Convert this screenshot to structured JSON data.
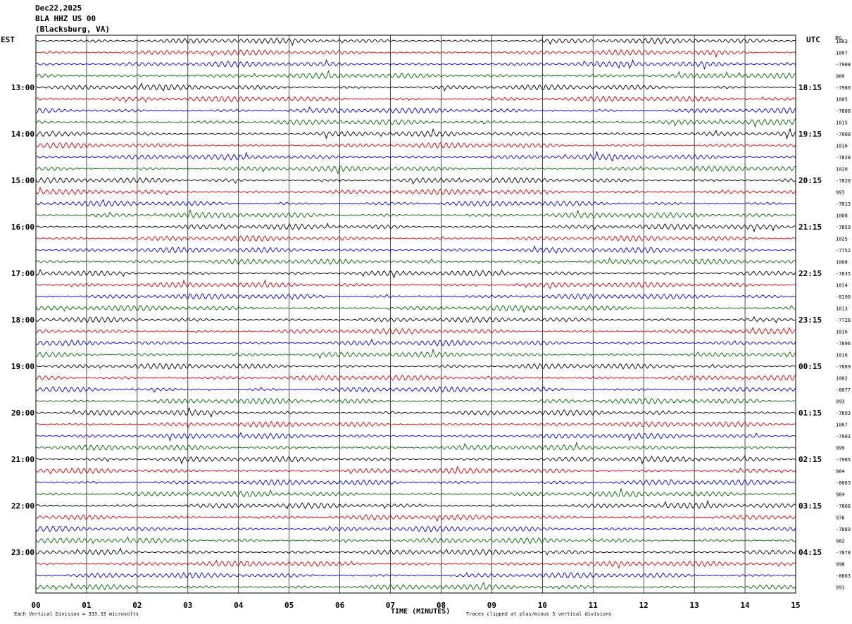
{
  "header": {
    "date": "Dec22,2025",
    "station": "BLA HHZ US 00",
    "location": "(Blacksburg, VA)"
  },
  "left_axis_title": "EST",
  "right_axis_title": "UTC",
  "pg_label": "PG",
  "footer": {
    "vertical_division": "Each Vertical Division =  333.33 microvolts",
    "clip_note": "Traces clipped at plus/minus 5 vertical divisions"
  },
  "colors": {
    "trace_cycle": [
      "#000000",
      "#cc0000",
      "#0000cc",
      "#006600"
    ],
    "grid": "#000000",
    "background": "#ffffff"
  },
  "chart_data": {
    "type": "line",
    "description_kind": "helicorder seismogram",
    "xlabel": "TIME (MINUTES)",
    "x_ticks": [
      "00",
      "01",
      "02",
      "03",
      "04",
      "05",
      "06",
      "07",
      "08",
      "09",
      "10",
      "11",
      "12",
      "13",
      "14",
      "15"
    ],
    "xlim": [
      0,
      15
    ],
    "lines_per_hour": 4,
    "left_hour_labels": [
      "13:00",
      "14:00",
      "15:00",
      "16:00",
      "17:00",
      "18:00",
      "19:00",
      "20:00",
      "21:00",
      "22:00",
      "23:00"
    ],
    "right_hour_labels": [
      "18:15",
      "19:15",
      "20:15",
      "21:15",
      "22:15",
      "23:15",
      "00:15",
      "01:15",
      "02:15",
      "03:15",
      "04:15"
    ],
    "first_hour_line_index": 4,
    "line_values": [
      "1003",
      "1007",
      "-7908",
      "989",
      "-7980",
      "1005",
      "-7888",
      "1015",
      "-7008",
      "1016",
      "-7828",
      "1020",
      "-7820",
      "993",
      "-7813",
      "1008",
      "-7859",
      "1025",
      "-7752",
      "1008",
      "-7835",
      "1014",
      "-8190",
      "1013",
      "-7728",
      "1016",
      "-7896",
      "1016",
      "-7889",
      "1002",
      "-8077",
      "993",
      "-7893",
      "1007",
      "-7903",
      "999",
      "-7985",
      "984",
      "-8063",
      "984",
      "-7806",
      "976",
      "-7889",
      "982",
      "-7878",
      "998",
      "-8063",
      "991"
    ]
  }
}
